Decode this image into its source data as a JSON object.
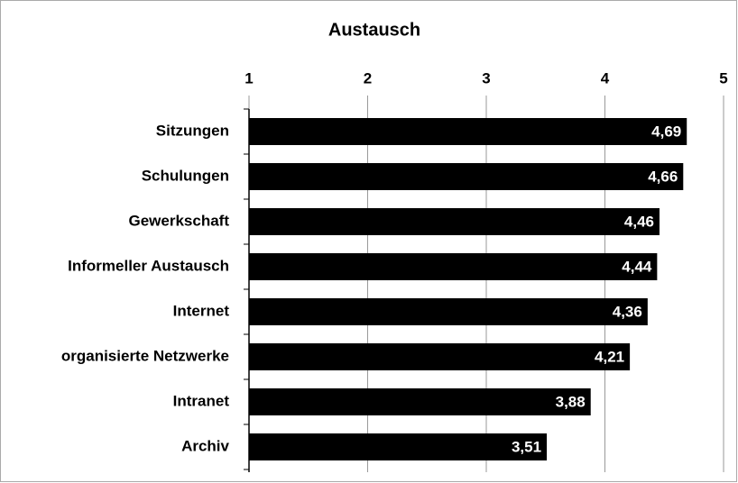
{
  "chart_data": {
    "type": "bar",
    "orientation": "horizontal",
    "title": "Austausch",
    "categories": [
      "Sitzungen",
      "Schulungen",
      "Gewerkschaft",
      "Informeller Austausch",
      "Internet",
      "organisierte Netzwerke",
      "Intranet",
      "Archiv"
    ],
    "values": [
      4.69,
      4.66,
      4.46,
      4.44,
      4.36,
      4.21,
      3.88,
      3.51
    ],
    "value_labels": [
      "4,69",
      "4,66",
      "4,46",
      "4,44",
      "4,36",
      "4,21",
      "3,88",
      "3,51"
    ],
    "color": "#000000",
    "xlim": [
      1,
      5
    ],
    "xticks": [
      1,
      2,
      3,
      4,
      5
    ],
    "grid": true
  }
}
